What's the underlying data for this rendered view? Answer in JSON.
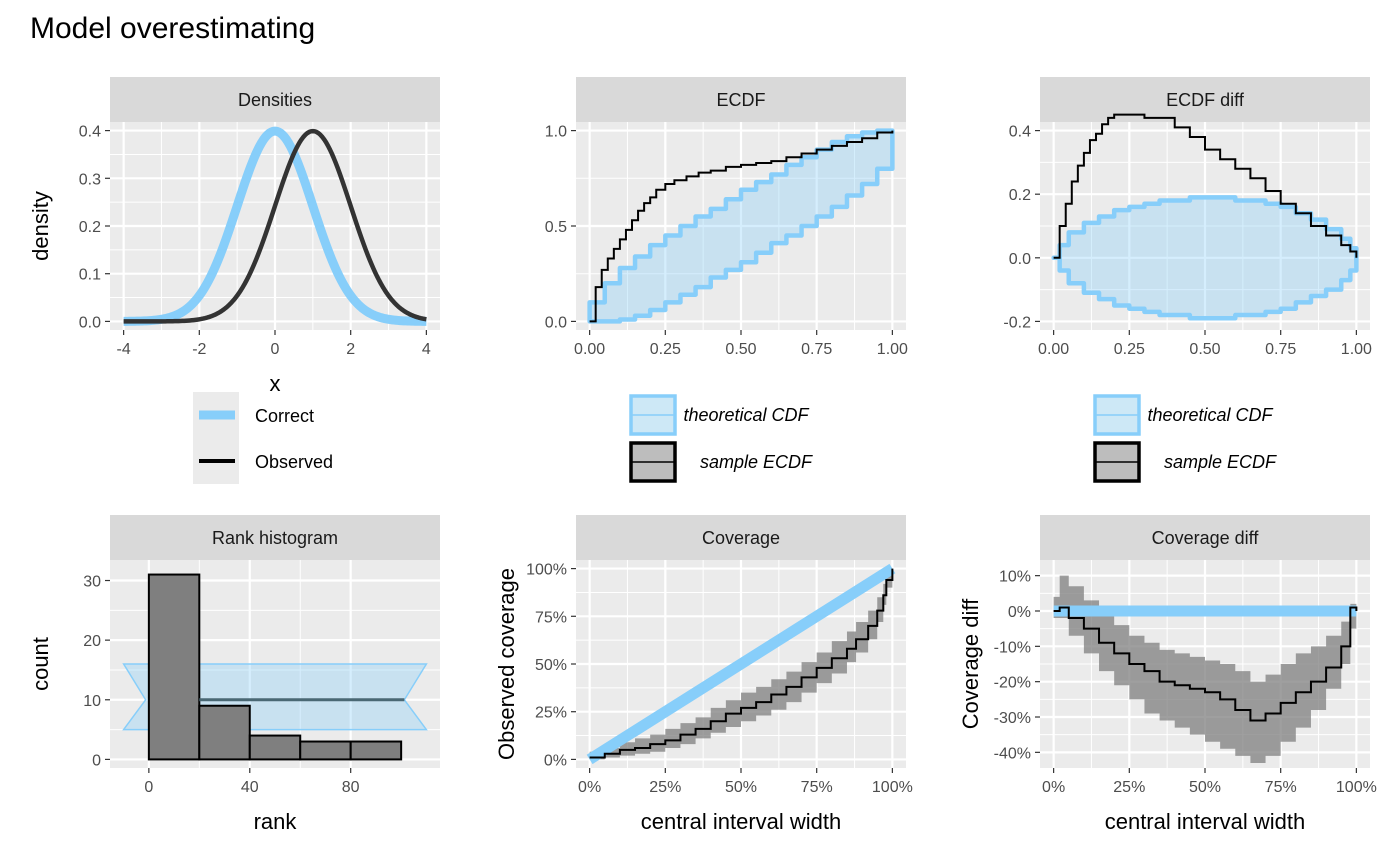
{
  "title": "Model overestimating",
  "chart_data": [
    {
      "type": "line",
      "panel_title": "Densities",
      "xlabel": "x",
      "ylabel": "density",
      "xlim": [
        -4,
        4
      ],
      "ylim": [
        0,
        0.4
      ],
      "x_ticks": [
        -4,
        -2,
        0,
        2,
        4
      ],
      "y_ticks": [
        0.0,
        0.1,
        0.2,
        0.3,
        0.4
      ],
      "x_tick_labels": [
        "-4",
        "-2",
        "0",
        "2",
        "4"
      ],
      "y_tick_labels": [
        "0.0",
        "0.1",
        "0.2",
        "0.3",
        "0.4"
      ],
      "grid": true,
      "series": [
        {
          "name": "Correct",
          "color": "#87cefa",
          "distribution": "normal",
          "mean": 0,
          "sd": 1
        },
        {
          "name": "Observed",
          "color": "#333333",
          "distribution": "normal",
          "mean": 1,
          "sd": 1
        }
      ],
      "legend_labels": [
        "Correct",
        "Observed"
      ],
      "legend_position": "bottom"
    },
    {
      "type": "line",
      "panel_title": "ECDF",
      "xlim": [
        0,
        1
      ],
      "ylim": [
        0,
        1
      ],
      "x_ticks": [
        0,
        0.25,
        0.5,
        0.75,
        1
      ],
      "y_ticks": [
        0,
        0.5,
        1
      ],
      "x_tick_labels": [
        "0.00",
        "0.25",
        "0.50",
        "0.75",
        "1.00"
      ],
      "y_tick_labels": [
        "0.0",
        "0.5",
        "1.0"
      ],
      "grid": true,
      "series": [
        {
          "name": "theoretical CDF",
          "type": "band",
          "color": "#87cefa",
          "x": [
            0,
            0.05,
            0.1,
            0.15,
            0.2,
            0.25,
            0.3,
            0.35,
            0.4,
            0.45,
            0.5,
            0.55,
            0.6,
            0.65,
            0.7,
            0.75,
            0.8,
            0.85,
            0.9,
            0.95,
            1.0
          ],
          "lower": [
            0,
            0,
            0.01,
            0.03,
            0.06,
            0.1,
            0.14,
            0.18,
            0.23,
            0.27,
            0.31,
            0.36,
            0.41,
            0.45,
            0.5,
            0.55,
            0.6,
            0.66,
            0.72,
            0.8,
            0.9
          ],
          "upper": [
            0.1,
            0.2,
            0.28,
            0.34,
            0.4,
            0.45,
            0.5,
            0.55,
            0.59,
            0.64,
            0.69,
            0.73,
            0.77,
            0.82,
            0.86,
            0.9,
            0.94,
            0.97,
            0.99,
            1.0,
            1.0
          ]
        },
        {
          "name": "sample ECDF",
          "type": "step",
          "color": "#000000",
          "x": [
            0,
            0.02,
            0.04,
            0.06,
            0.08,
            0.1,
            0.12,
            0.14,
            0.16,
            0.18,
            0.2,
            0.22,
            0.25,
            0.28,
            0.32,
            0.36,
            0.4,
            0.45,
            0.5,
            0.55,
            0.6,
            0.65,
            0.7,
            0.75,
            0.8,
            0.85,
            0.9,
            0.95,
            1.0
          ],
          "y": [
            0,
            0.18,
            0.27,
            0.33,
            0.38,
            0.43,
            0.48,
            0.53,
            0.58,
            0.62,
            0.65,
            0.69,
            0.72,
            0.74,
            0.76,
            0.78,
            0.79,
            0.81,
            0.82,
            0.83,
            0.84,
            0.86,
            0.88,
            0.9,
            0.92,
            0.94,
            0.96,
            0.99,
            1.0
          ]
        }
      ],
      "legend_labels": [
        "theoretical CDF",
        "sample ECDF"
      ],
      "legend_position": "bottom"
    },
    {
      "type": "line",
      "panel_title": "ECDF diff",
      "xlim": [
        0,
        1
      ],
      "ylim": [
        -0.2,
        0.4
      ],
      "x_ticks": [
        0,
        0.25,
        0.5,
        0.75,
        1
      ],
      "y_ticks": [
        -0.2,
        0,
        0.2,
        0.4
      ],
      "x_tick_labels": [
        "0.00",
        "0.25",
        "0.50",
        "0.75",
        "1.00"
      ],
      "y_tick_labels": [
        "-0.2",
        "0.0",
        "0.2",
        "0.4"
      ],
      "grid": true,
      "series": [
        {
          "name": "theoretical CDF",
          "type": "band",
          "color": "#87cefa",
          "x": [
            0,
            0.02,
            0.05,
            0.1,
            0.15,
            0.2,
            0.25,
            0.3,
            0.35,
            0.4,
            0.45,
            0.5,
            0.55,
            0.6,
            0.65,
            0.7,
            0.75,
            0.8,
            0.85,
            0.9,
            0.95,
            0.98,
            1.0
          ],
          "lower": [
            0,
            -0.04,
            -0.08,
            -0.11,
            -0.13,
            -0.15,
            -0.16,
            -0.17,
            -0.18,
            -0.18,
            -0.19,
            -0.19,
            -0.19,
            -0.18,
            -0.18,
            -0.17,
            -0.16,
            -0.14,
            -0.12,
            -0.1,
            -0.07,
            -0.04,
            0
          ],
          "upper": [
            0,
            0.04,
            0.08,
            0.11,
            0.13,
            0.15,
            0.16,
            0.17,
            0.18,
            0.18,
            0.19,
            0.19,
            0.19,
            0.18,
            0.18,
            0.17,
            0.16,
            0.14,
            0.12,
            0.09,
            0.06,
            0.03,
            0
          ]
        },
        {
          "name": "sample ECDF",
          "type": "step",
          "color": "#000000",
          "x": [
            0,
            0.01,
            0.02,
            0.04,
            0.06,
            0.08,
            0.1,
            0.12,
            0.14,
            0.16,
            0.18,
            0.2,
            0.25,
            0.3,
            0.35,
            0.4,
            0.45,
            0.5,
            0.55,
            0.6,
            0.65,
            0.7,
            0.75,
            0.8,
            0.85,
            0.9,
            0.95,
            0.98,
            1.0
          ],
          "y": [
            0,
            0.0,
            0.1,
            0.17,
            0.24,
            0.29,
            0.33,
            0.37,
            0.39,
            0.42,
            0.44,
            0.45,
            0.45,
            0.44,
            0.44,
            0.41,
            0.38,
            0.34,
            0.31,
            0.28,
            0.25,
            0.21,
            0.17,
            0.14,
            0.1,
            0.07,
            0.04,
            0.02,
            0.0
          ]
        }
      ],
      "legend_labels": [
        "theoretical CDF",
        "sample ECDF"
      ],
      "legend_position": "bottom"
    },
    {
      "type": "bar",
      "panel_title": "Rank histogram",
      "xlabel": "rank",
      "ylabel": "count",
      "xlim": [
        -10,
        110
      ],
      "ylim": [
        0,
        32
      ],
      "x_ticks": [
        0,
        40,
        80
      ],
      "y_ticks": [
        0,
        10,
        20,
        30
      ],
      "x_tick_labels": [
        "0",
        "40",
        "80"
      ],
      "y_tick_labels": [
        "0",
        "10",
        "20",
        "30"
      ],
      "grid": true,
      "bins": [
        [
          0,
          20
        ],
        [
          20,
          40
        ],
        [
          40,
          60
        ],
        [
          60,
          80
        ],
        [
          80,
          100
        ]
      ],
      "values": [
        31,
        9,
        4,
        3,
        3
      ],
      "expected_count": 10,
      "expected_band": [
        5,
        16
      ]
    },
    {
      "type": "line",
      "panel_title": "Coverage",
      "xlabel": "central interval width",
      "ylabel": "Observed coverage",
      "xlim": [
        0,
        1
      ],
      "ylim": [
        0,
        1
      ],
      "x_ticks": [
        0,
        0.25,
        0.5,
        0.75,
        1
      ],
      "y_ticks": [
        0,
        0.25,
        0.5,
        0.75,
        1
      ],
      "x_tick_labels": [
        "0%",
        "25%",
        "50%",
        "75%",
        "100%"
      ],
      "y_tick_labels": [
        "0%",
        "25%",
        "50%",
        "75%",
        "100%"
      ],
      "grid": true,
      "series": [
        {
          "name": "Correct",
          "type": "line",
          "color": "#87cefa",
          "x": [
            0,
            1
          ],
          "y": [
            0,
            1
          ]
        },
        {
          "name": "Observed",
          "type": "step",
          "color": "#000000",
          "x": [
            0,
            0.05,
            0.1,
            0.15,
            0.2,
            0.25,
            0.3,
            0.35,
            0.4,
            0.45,
            0.5,
            0.55,
            0.6,
            0.65,
            0.7,
            0.75,
            0.8,
            0.85,
            0.88,
            0.92,
            0.95,
            0.97,
            0.98,
            1.0
          ],
          "y": [
            0.01,
            0.03,
            0.05,
            0.06,
            0.08,
            0.1,
            0.13,
            0.16,
            0.2,
            0.24,
            0.27,
            0.3,
            0.34,
            0.38,
            0.43,
            0.48,
            0.53,
            0.58,
            0.63,
            0.7,
            0.78,
            0.86,
            0.94,
            1.0
          ],
          "band_lower": [
            0,
            0.01,
            0.02,
            0.03,
            0.04,
            0.06,
            0.08,
            0.11,
            0.14,
            0.17,
            0.2,
            0.23,
            0.26,
            0.3,
            0.35,
            0.4,
            0.45,
            0.51,
            0.56,
            0.63,
            0.72,
            0.81,
            0.9,
            0.98
          ],
          "band_upper": [
            0.04,
            0.06,
            0.09,
            0.11,
            0.13,
            0.16,
            0.19,
            0.22,
            0.27,
            0.31,
            0.35,
            0.38,
            0.42,
            0.46,
            0.51,
            0.56,
            0.62,
            0.67,
            0.72,
            0.78,
            0.85,
            0.92,
            0.98,
            1.0
          ]
        }
      ]
    },
    {
      "type": "line",
      "panel_title": "Coverage diff",
      "xlabel": "central interval width",
      "ylabel": "Coverage diff",
      "xlim": [
        0,
        1
      ],
      "ylim": [
        -0.42,
        0.12
      ],
      "x_ticks": [
        0,
        0.25,
        0.5,
        0.75,
        1
      ],
      "y_ticks": [
        0.1,
        0,
        -0.1,
        -0.2,
        -0.3,
        -0.4
      ],
      "x_tick_labels": [
        "0%",
        "25%",
        "50%",
        "75%",
        "100%"
      ],
      "y_tick_labels": [
        "10%",
        "0%",
        "-10%",
        "-20%",
        "-30%",
        "-40%"
      ],
      "grid": true,
      "series": [
        {
          "name": "Correct",
          "type": "line",
          "color": "#87cefa",
          "x": [
            0,
            1
          ],
          "y": [
            0,
            0
          ]
        },
        {
          "name": "Observed",
          "type": "step",
          "color": "#000000",
          "x": [
            0,
            0.02,
            0.05,
            0.1,
            0.15,
            0.2,
            0.25,
            0.3,
            0.35,
            0.4,
            0.45,
            0.5,
            0.55,
            0.6,
            0.65,
            0.7,
            0.75,
            0.8,
            0.85,
            0.9,
            0.95,
            0.98,
            1.0
          ],
          "y": [
            0,
            0.01,
            -0.02,
            -0.05,
            -0.09,
            -0.12,
            -0.15,
            -0.17,
            -0.2,
            -0.21,
            -0.22,
            -0.23,
            -0.25,
            -0.28,
            -0.31,
            -0.29,
            -0.26,
            -0.23,
            -0.2,
            -0.16,
            -0.1,
            0.01,
            0.0
          ],
          "band_lower": [
            -0.02,
            -0.02,
            -0.07,
            -0.12,
            -0.17,
            -0.21,
            -0.25,
            -0.29,
            -0.31,
            -0.33,
            -0.35,
            -0.37,
            -0.39,
            -0.41,
            -0.43,
            -0.41,
            -0.37,
            -0.33,
            -0.28,
            -0.22,
            -0.15,
            -0.05,
            -0.02
          ],
          "band_upper": [
            0.04,
            0.1,
            0.07,
            0.03,
            -0.01,
            -0.04,
            -0.07,
            -0.09,
            -0.11,
            -0.12,
            -0.13,
            -0.14,
            -0.15,
            -0.17,
            -0.2,
            -0.18,
            -0.15,
            -0.12,
            -0.1,
            -0.07,
            -0.03,
            0.02,
            0.02
          ]
        }
      ]
    }
  ]
}
